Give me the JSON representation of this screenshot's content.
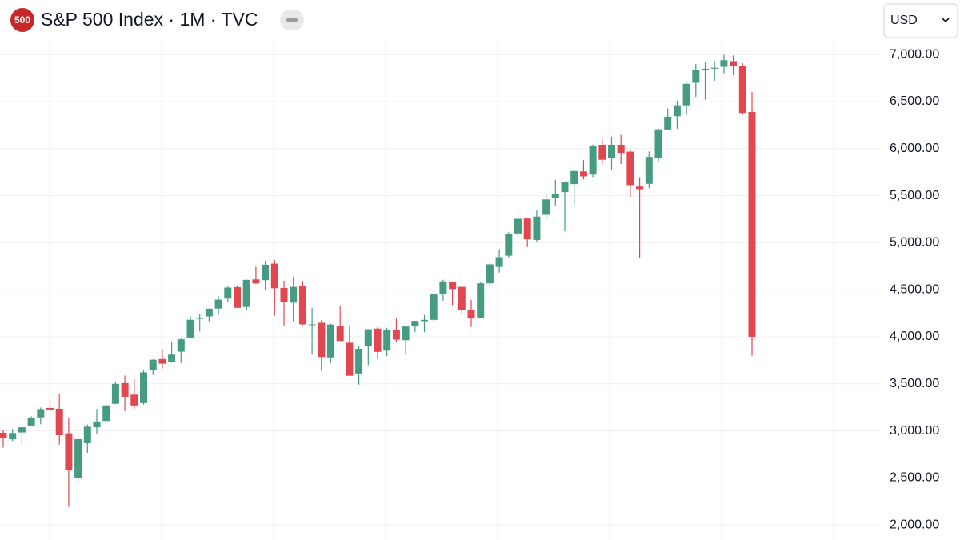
{
  "badge": "500",
  "currency": "USD",
  "chart_data": {
    "type": "candlestick",
    "title": "S&P 500 Index · 1M · TVC",
    "up_color": "#469c83",
    "down_color": "#e2474f",
    "grid": true,
    "ylim": [
      1840,
      7580
    ],
    "yticks": [
      {
        "value": 2000,
        "label": "2,000.00"
      },
      {
        "value": 2500,
        "label": "2,500.00"
      },
      {
        "value": 3000,
        "label": "3,000.00"
      },
      {
        "value": 3500,
        "label": "3,500.00"
      },
      {
        "value": 4000,
        "label": "4,000.00"
      },
      {
        "value": 4500,
        "label": "4,500.00"
      },
      {
        "value": 5000,
        "label": "5,000.00"
      },
      {
        "value": 5500,
        "label": "5,500.00"
      },
      {
        "value": 6000,
        "label": "6,000.00"
      },
      {
        "value": 6500,
        "label": "6,500.00"
      },
      {
        "value": 7000,
        "label": "7,000.00"
      }
    ],
    "open": [
      2980,
      2910,
      2983,
      3050,
      3143,
      3244,
      3235,
      2974,
      2499,
      2869,
      3038,
      3105,
      3288,
      3508,
      3385,
      3296,
      3645,
      3764,
      3731,
      3842,
      3992,
      4191,
      4217,
      4300,
      4406,
      4528,
      4317,
      4610,
      4602,
      4778,
      4519,
      4363,
      4540,
      4130,
      4149,
      3781,
      4113,
      3937,
      3610,
      3901,
      4087,
      3853,
      4070,
      3964,
      4115,
      4166,
      4180,
      4451,
      4578,
      4530,
      4284,
      4201,
      4568,
      4743,
      4862,
      5098,
      5257,
      5029,
      5297,
      5472,
      5538,
      5623,
      5758,
      5724,
      6041,
      5903,
      6041,
      5968,
      5597,
      5626,
      5897,
      6204,
      6345,
      6460,
      6700,
      6840,
      6850,
      6870,
      6930,
      6880,
      6390
    ],
    "high": [
      3013,
      3021,
      3050,
      3154,
      3248,
      3338,
      3394,
      3137,
      2954,
      3068,
      3233,
      3280,
      3514,
      3588,
      3549,
      3646,
      3760,
      3870,
      3950,
      3983,
      4218,
      4238,
      4302,
      4430,
      4537,
      4546,
      4608,
      4744,
      4808,
      4819,
      4596,
      4637,
      4594,
      4307,
      4178,
      4140,
      4325,
      4119,
      3905,
      4081,
      4101,
      4095,
      4195,
      4110,
      4170,
      4232,
      4459,
      4607,
      4584,
      4541,
      4393,
      4587,
      4794,
      4931,
      5111,
      5265,
      5264,
      5342,
      5524,
      5669,
      5651,
      5767,
      5878,
      6044,
      6100,
      6128,
      6147,
      5986,
      5696,
      5969,
      6215,
      6427,
      6508,
      6700,
      6900,
      6920,
      6930,
      7000,
      6990,
      6910,
      6600
    ],
    "low": [
      2822,
      2892,
      2856,
      3050,
      3070,
      3214,
      2855,
      2192,
      2447,
      2767,
      2966,
      3101,
      3284,
      3210,
      3234,
      3280,
      3594,
      3662,
      3725,
      3723,
      3992,
      4057,
      4165,
      4233,
      4367,
      4306,
      4279,
      4560,
      4496,
      4223,
      4115,
      4157,
      4124,
      3811,
      3637,
      3722,
      3955,
      3585,
      3492,
      3699,
      3764,
      3794,
      3943,
      3809,
      4049,
      4048,
      4166,
      4385,
      4336,
      4239,
      4104,
      4197,
      4546,
      4682,
      4845,
      5056,
      4954,
      5012,
      5234,
      5390,
      5120,
      5403,
      5674,
      5697,
      5832,
      5773,
      5837,
      5489,
      4835,
      5578,
      5861,
      6201,
      6212,
      6360,
      6550,
      6520,
      6720,
      6800,
      6780,
      6360,
      3800
    ],
    "close": [
      2926,
      2977,
      3038,
      3141,
      3231,
      3226,
      2954,
      2585,
      2912,
      3044,
      3100,
      3271,
      3500,
      3363,
      3270,
      3622,
      3756,
      3714,
      3811,
      3973,
      4181,
      4204,
      4298,
      4395,
      4523,
      4308,
      4605,
      4567,
      4766,
      4516,
      4374,
      4530,
      4132,
      4132,
      3785,
      4130,
      3955,
      3586,
      3872,
      4080,
      3840,
      4077,
      3970,
      4109,
      4169,
      4180,
      4450,
      4589,
      4508,
      4288,
      4194,
      4568,
      4770,
      4846,
      5096,
      5254,
      5036,
      5278,
      5460,
      5522,
      5648,
      5762,
      5705,
      6032,
      5882,
      6041,
      5955,
      5612,
      5569,
      5912,
      6205,
      6339,
      6460,
      6688,
      6840,
      6850,
      6860,
      6940,
      6880,
      6380,
      4000
    ]
  }
}
